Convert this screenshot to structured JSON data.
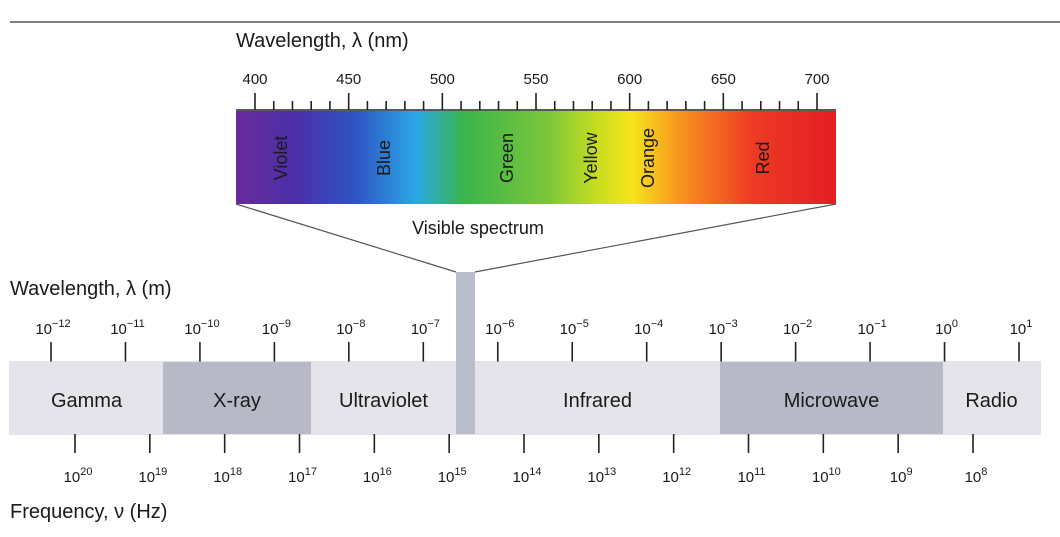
{
  "visible_axis": {
    "title": "Wavelength, λ (nm)",
    "ticks": [
      400,
      450,
      500,
      550,
      600,
      650,
      700
    ]
  },
  "visible_colors": [
    "Violet",
    "Blue",
    "Green",
    "Yellow",
    "Orange",
    "Red"
  ],
  "visible_label": "Visible spectrum",
  "wavelength_axis": {
    "title": "Wavelength, λ (m)",
    "base": "10",
    "exponents": [
      "−12",
      "−11",
      "−10",
      "−9",
      "−8",
      "−7",
      "−6",
      "−5",
      "−4",
      "−3",
      "−2",
      "−1",
      "0",
      "1"
    ]
  },
  "bands": [
    {
      "name": "Gamma",
      "shade": "light"
    },
    {
      "name": "X-ray",
      "shade": "dark"
    },
    {
      "name": "Ultraviolet",
      "shade": "light"
    },
    {
      "name": "Infrared",
      "shade": "light"
    },
    {
      "name": "Microwave",
      "shade": "dark"
    },
    {
      "name": "Radio",
      "shade": "light"
    }
  ],
  "frequency_axis": {
    "title": "Frequency, ν (Hz)",
    "base": "10",
    "exponents": [
      "20",
      "19",
      "18",
      "17",
      "16",
      "15",
      "14",
      "13",
      "12",
      "11",
      "10",
      "9",
      "8"
    ]
  },
  "colors": {
    "band_light": "#e4e4ea",
    "band_dark": "#b7b9c6",
    "visible_bar": "#b9bccb",
    "frame_line": "#555555",
    "spectrum": [
      "#6a2a9c",
      "#3c3fb3",
      "#2f8fe0",
      "#39b54a",
      "#b9db1e",
      "#f6e51d",
      "#f7941d",
      "#ed3b24",
      "#e41d25"
    ]
  }
}
